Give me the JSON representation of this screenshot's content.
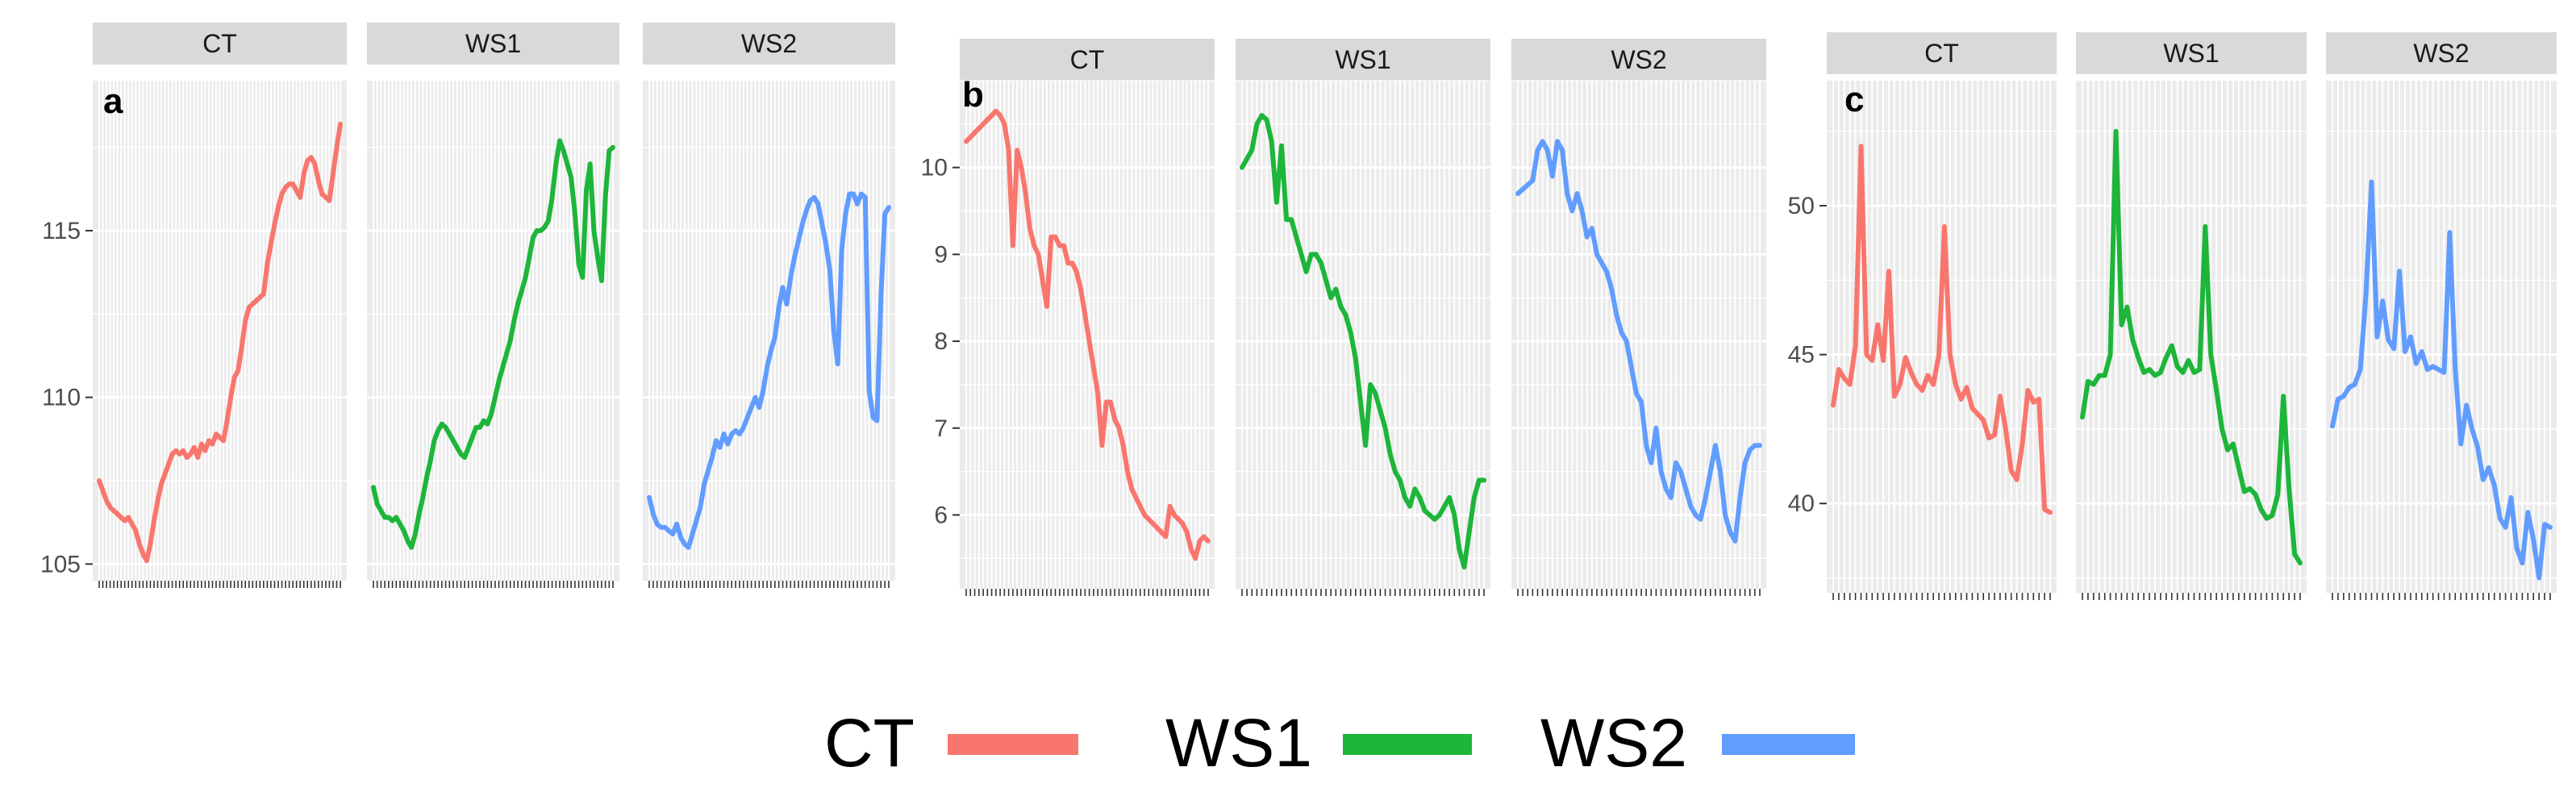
{
  "colors": {
    "CT": "#F8766D",
    "WS1": "#1DB53A",
    "WS2": "#619CFF"
  },
  "legend": {
    "items": [
      "CT",
      "WS1",
      "WS2"
    ]
  },
  "chart_data": [
    {
      "type": "line",
      "panel_label": "a",
      "facets": [
        "CT",
        "WS1",
        "WS2"
      ],
      "ylim": [
        104.5,
        119.5
      ],
      "yticks": [
        105,
        110,
        115
      ],
      "series": [
        {
          "name": "CT",
          "values": [
            107.5,
            107.2,
            106.9,
            106.7,
            106.6,
            106.5,
            106.4,
            106.3,
            106.4,
            106.2,
            106.0,
            105.6,
            105.3,
            105.1,
            105.6,
            106.3,
            106.9,
            107.4,
            107.7,
            108.0,
            108.3,
            108.4,
            108.3,
            108.4,
            108.2,
            108.3,
            108.5,
            108.2,
            108.6,
            108.4,
            108.7,
            108.6,
            108.9,
            108.8,
            108.7,
            109.3,
            110.0,
            110.6,
            110.8,
            111.5,
            112.3,
            112.7,
            112.8,
            112.9,
            113.0,
            113.1,
            114.0,
            114.6,
            115.2,
            115.7,
            116.1,
            116.3,
            116.4,
            116.4,
            116.2,
            116.0,
            116.7,
            117.1,
            117.2,
            117.0,
            116.5,
            116.1,
            116.0,
            115.9,
            116.7,
            117.5,
            118.2
          ]
        },
        {
          "name": "WS1",
          "values": [
            107.3,
            106.8,
            106.6,
            106.4,
            106.4,
            106.3,
            106.4,
            106.2,
            106.0,
            105.7,
            105.5,
            105.9,
            106.5,
            107.0,
            107.6,
            108.1,
            108.7,
            109.0,
            109.2,
            109.1,
            108.9,
            108.7,
            108.5,
            108.3,
            108.2,
            108.5,
            108.8,
            109.1,
            109.1,
            109.3,
            109.2,
            109.5,
            110.0,
            110.5,
            110.9,
            111.3,
            111.7,
            112.3,
            112.8,
            113.2,
            113.6,
            114.2,
            114.8,
            115.0,
            115.0,
            115.1,
            115.3,
            116.0,
            117.0,
            117.7,
            117.4,
            117.0,
            116.6,
            115.5,
            114.0,
            113.6,
            116.2,
            117.0,
            115.0,
            114.2,
            113.5,
            116.0,
            117.4,
            117.5
          ]
        },
        {
          "name": "WS2",
          "values": [
            107.0,
            106.5,
            106.2,
            106.1,
            106.1,
            106.0,
            105.9,
            106.2,
            105.8,
            105.6,
            105.5,
            105.9,
            106.3,
            106.7,
            107.4,
            107.8,
            108.2,
            108.7,
            108.5,
            108.9,
            108.6,
            108.9,
            109.0,
            108.9,
            109.1,
            109.4,
            109.7,
            110.0,
            109.7,
            110.2,
            110.9,
            111.4,
            111.8,
            112.7,
            113.3,
            112.8,
            113.6,
            114.2,
            114.7,
            115.2,
            115.6,
            115.9,
            116.0,
            115.8,
            115.2,
            114.6,
            113.8,
            112.0,
            111.0,
            114.4,
            115.5,
            116.1,
            116.1,
            115.8,
            116.1,
            116.0,
            110.2,
            109.4,
            109.3,
            113.0,
            115.5,
            115.7
          ]
        }
      ]
    },
    {
      "type": "line",
      "panel_label": "b",
      "facets": [
        "CT",
        "WS1",
        "WS2"
      ],
      "ylim": [
        5.15,
        11.0
      ],
      "yticks": [
        6,
        7,
        8,
        9,
        10
      ],
      "series": [
        {
          "name": "CT",
          "values": [
            10.3,
            10.35,
            10.4,
            10.45,
            10.5,
            10.55,
            10.6,
            10.65,
            10.6,
            10.5,
            10.2,
            9.1,
            10.2,
            10.0,
            9.7,
            9.3,
            9.1,
            9.0,
            8.7,
            8.4,
            9.2,
            9.2,
            9.1,
            9.1,
            8.9,
            8.9,
            8.8,
            8.6,
            8.3,
            8.0,
            7.7,
            7.4,
            6.8,
            7.3,
            7.3,
            7.1,
            7.0,
            6.8,
            6.5,
            6.3,
            6.2,
            6.1,
            6.0,
            5.95,
            5.9,
            5.85,
            5.8,
            5.75,
            6.1,
            6.0,
            5.95,
            5.9,
            5.8,
            5.6,
            5.5,
            5.7,
            5.75,
            5.7
          ]
        },
        {
          "name": "WS1",
          "values": [
            10.0,
            10.1,
            10.2,
            10.5,
            10.6,
            10.55,
            10.3,
            9.6,
            10.25,
            9.4,
            9.4,
            9.2,
            9.0,
            8.8,
            9.0,
            9.0,
            8.9,
            8.7,
            8.5,
            8.6,
            8.4,
            8.3,
            8.1,
            7.8,
            7.3,
            6.8,
            7.5,
            7.4,
            7.2,
            7.0,
            6.7,
            6.5,
            6.4,
            6.2,
            6.1,
            6.3,
            6.2,
            6.05,
            6.0,
            5.95,
            6.0,
            6.1,
            6.2,
            6.0,
            5.6,
            5.4,
            5.8,
            6.2,
            6.4,
            6.4
          ]
        },
        {
          "name": "WS2",
          "values": [
            9.7,
            9.75,
            9.8,
            9.85,
            10.2,
            10.3,
            10.2,
            9.9,
            10.3,
            10.2,
            9.7,
            9.5,
            9.7,
            9.5,
            9.2,
            9.3,
            9.0,
            8.9,
            8.8,
            8.6,
            8.3,
            8.1,
            8.0,
            7.7,
            7.4,
            7.3,
            6.8,
            6.6,
            7.0,
            6.5,
            6.3,
            6.2,
            6.6,
            6.5,
            6.3,
            6.1,
            6.0,
            5.95,
            6.2,
            6.5,
            6.8,
            6.5,
            6.0,
            5.8,
            5.7,
            6.2,
            6.6,
            6.75,
            6.8,
            6.8
          ]
        }
      ]
    },
    {
      "type": "line",
      "panel_label": "c",
      "facets": [
        "CT",
        "WS1",
        "WS2"
      ],
      "ylim": [
        37.0,
        54.2
      ],
      "yticks": [
        40,
        45,
        50
      ],
      "series": [
        {
          "name": "CT",
          "values": [
            43.3,
            44.5,
            44.2,
            44.0,
            45.3,
            52.0,
            45.0,
            44.8,
            46.0,
            44.8,
            47.8,
            43.6,
            44.0,
            44.9,
            44.4,
            44.0,
            43.8,
            44.3,
            44.0,
            45.0,
            49.3,
            45.0,
            44.0,
            43.5,
            43.9,
            43.2,
            43.0,
            42.8,
            42.2,
            42.3,
            43.6,
            42.5,
            41.1,
            40.8,
            42.0,
            43.8,
            43.4,
            43.5,
            39.8,
            39.7
          ]
        },
        {
          "name": "WS1",
          "values": [
            42.9,
            44.1,
            44.0,
            44.3,
            44.3,
            45.0,
            52.5,
            46.0,
            46.6,
            45.5,
            44.9,
            44.4,
            44.5,
            44.3,
            44.4,
            44.9,
            45.3,
            44.6,
            44.4,
            44.8,
            44.4,
            44.5,
            49.3,
            45.0,
            43.8,
            42.5,
            41.8,
            42.0,
            41.2,
            40.4,
            40.5,
            40.3,
            39.8,
            39.5,
            39.6,
            40.3,
            43.6,
            40.5,
            38.3,
            38.0
          ]
        },
        {
          "name": "WS2",
          "values": [
            42.6,
            43.5,
            43.6,
            43.9,
            44.0,
            44.5,
            47.0,
            50.8,
            45.6,
            46.8,
            45.5,
            45.2,
            47.8,
            45.1,
            45.6,
            44.7,
            45.1,
            44.5,
            44.6,
            44.5,
            44.4,
            49.1,
            44.5,
            42.0,
            43.3,
            42.5,
            41.9,
            40.8,
            41.2,
            40.6,
            39.5,
            39.2,
            40.2,
            38.5,
            38.0,
            39.7,
            38.8,
            37.5,
            39.3,
            39.2
          ]
        }
      ]
    }
  ]
}
